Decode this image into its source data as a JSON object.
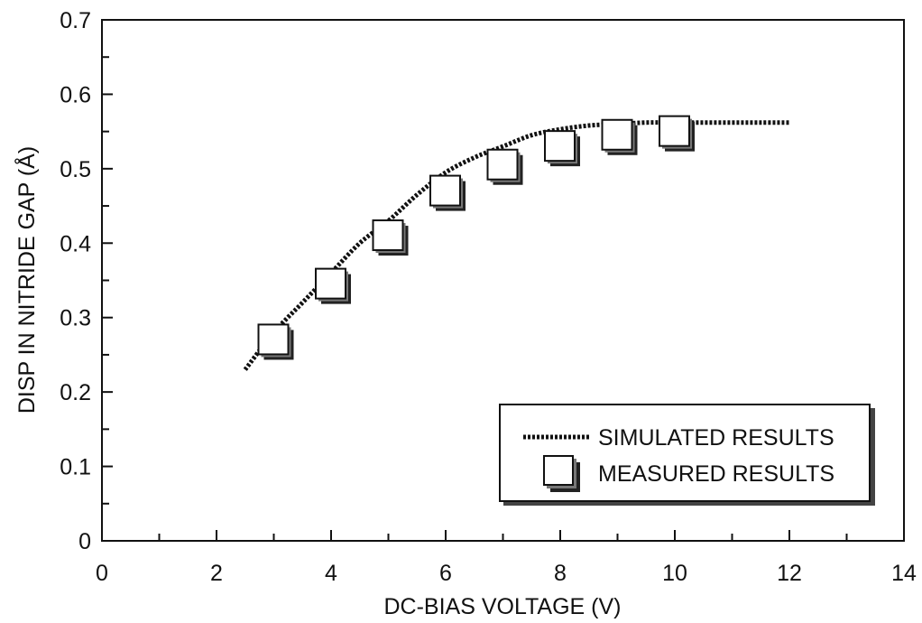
{
  "chart_data": {
    "type": "scatter",
    "title": "",
    "xlabel": "DC-BIAS VOLTAGE (V)",
    "ylabel": "DISP IN NITRIDE GAP (Å)",
    "xlim": [
      0,
      14
    ],
    "ylim": [
      0,
      0.7
    ],
    "x_ticks": [
      0,
      2,
      4,
      6,
      8,
      10,
      12,
      14
    ],
    "x_tick_labels": [
      "0",
      "2",
      "4",
      "6",
      "8",
      "10",
      "12",
      "14"
    ],
    "y_ticks": [
      0,
      0.1,
      0.2,
      0.3,
      0.4,
      0.5,
      0.6,
      0.7
    ],
    "y_tick_labels": [
      "0",
      "0.1",
      "0.2",
      "0.3",
      "0.4",
      "0.5",
      "0.6",
      "0.7"
    ],
    "grid": false,
    "legend_position": "bottom-right",
    "series": [
      {
        "name": "SIMULATED RESULTS",
        "style": "dotted-line",
        "color": "#111111",
        "x": [
          2.5,
          3.0,
          3.5,
          4.0,
          4.5,
          5.0,
          5.5,
          6.0,
          6.5,
          7.0,
          7.5,
          8.0,
          8.5,
          9.0,
          9.5,
          10.0,
          10.5,
          11.0,
          11.5,
          12.0
        ],
        "y": [
          0.23,
          0.28,
          0.32,
          0.36,
          0.4,
          0.43,
          0.465,
          0.495,
          0.515,
          0.53,
          0.545,
          0.553,
          0.558,
          0.56,
          0.562,
          0.562,
          0.562,
          0.562,
          0.562,
          0.562
        ]
      },
      {
        "name": "MEASURED RESULTS",
        "style": "square-marker",
        "color": "#111111",
        "x": [
          3,
          4,
          5,
          6,
          7,
          8,
          9,
          10
        ],
        "y": [
          0.27,
          0.345,
          0.41,
          0.47,
          0.505,
          0.53,
          0.545,
          0.55
        ]
      }
    ]
  }
}
